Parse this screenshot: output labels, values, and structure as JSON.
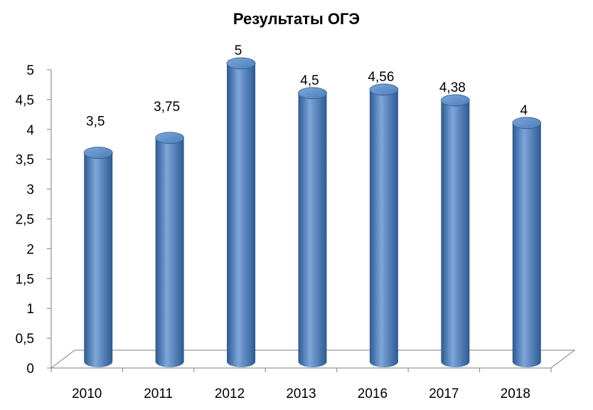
{
  "chart_data": {
    "type": "bar",
    "title": "Результаты ОГЭ",
    "categories": [
      "2010",
      "2011",
      "2012",
      "2013",
      "2016",
      "2017",
      "2018"
    ],
    "values": [
      3.5,
      3.75,
      5,
      4.5,
      4.56,
      4.38,
      4
    ],
    "value_labels": [
      "3,5",
      "3,75",
      "5",
      "4,5",
      "4,56",
      "4,38",
      "4"
    ],
    "y_ticks": [
      0,
      0.5,
      1,
      1.5,
      2,
      2.5,
      3,
      3.5,
      4,
      4.5,
      5
    ],
    "y_tick_labels": [
      "0",
      "0,5",
      "1",
      "1,5",
      "2",
      "2,5",
      "3",
      "3,5",
      "4",
      "4,5",
      "5"
    ],
    "ylim": [
      0,
      5
    ],
    "xlabel": "",
    "ylabel": "",
    "grid": false,
    "legend": "none",
    "bar_style": "3d-cylinder",
    "colors": {
      "bar": "#4a7ebb",
      "bar_dark": "#2b5a93",
      "bar_light": "#7ea6d8",
      "axis": "#7f7f7f"
    }
  }
}
